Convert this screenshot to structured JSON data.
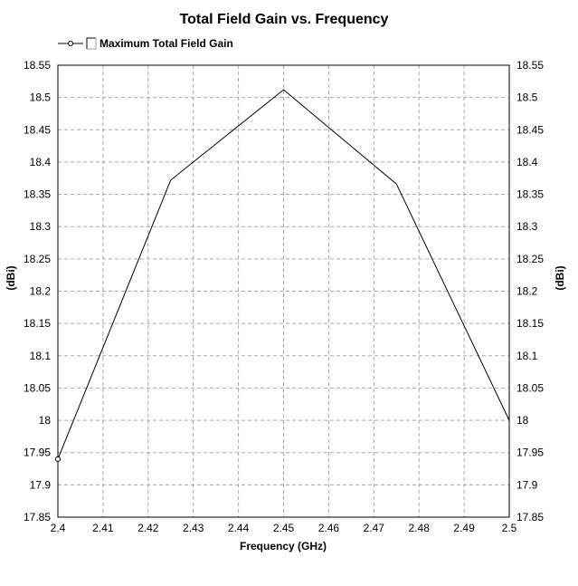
{
  "chart_data": {
    "type": "line",
    "title": "Total Field Gain vs. Frequency",
    "xlabel": "Frequency (GHz)",
    "ylabel": "(dBi)",
    "ylabel_right": "(dBi)",
    "xlim": [
      2.4,
      2.5
    ],
    "ylim": [
      17.85,
      18.55
    ],
    "grid": true,
    "legend_position": "top-left",
    "x_ticks": [
      "2.4",
      "2.41",
      "2.42",
      "2.43",
      "2.44",
      "2.45",
      "2.46",
      "2.47",
      "2.48",
      "2.49",
      "2.5"
    ],
    "y_ticks": [
      "17.85",
      "17.9",
      "17.95",
      "18",
      "18.05",
      "18.1",
      "18.15",
      "18.2",
      "18.25",
      "18.3",
      "18.35",
      "18.4",
      "18.45",
      "18.5",
      "18.55"
    ],
    "series": [
      {
        "name": "Maximum Total Field Gain",
        "color": "#000000",
        "x": [
          2.4,
          2.425,
          2.45,
          2.475,
          2.5
        ],
        "y": [
          17.94,
          18.372,
          18.512,
          18.366,
          18.0
        ]
      }
    ]
  }
}
